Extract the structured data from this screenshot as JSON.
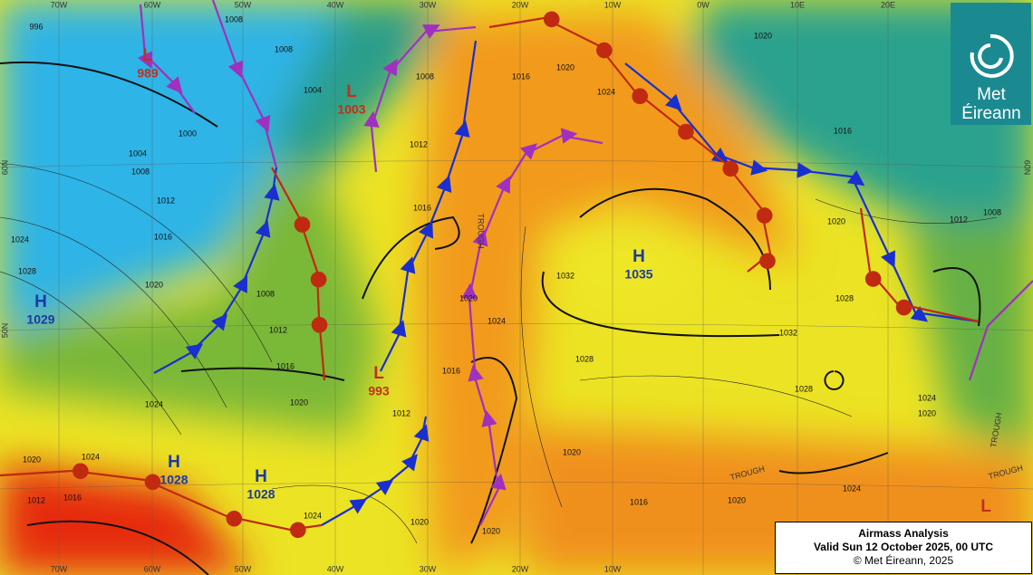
{
  "logo": {
    "line1": "Met",
    "line2": "Éireann"
  },
  "info_box": {
    "title": "Airmass Analysis",
    "valid": "Valid Sun 12 October 2025, 00 UTC",
    "copyright": "© Met Éireann, 2025"
  },
  "pressure_centres": [
    {
      "type": "L",
      "pressure": 989
    },
    {
      "type": "L",
      "pressure": 1003
    },
    {
      "type": "L",
      "pressure": 993
    },
    {
      "type": "H",
      "pressure": 1035
    },
    {
      "type": "H",
      "pressure": 1029
    },
    {
      "type": "H",
      "pressure": 1028
    },
    {
      "type": "H",
      "pressure": 1028
    },
    {
      "type": "L"
    }
  ],
  "longitude_labels_top": [
    "70W",
    "60W",
    "50W",
    "40W",
    "30W",
    "20W",
    "10W",
    "0W",
    "10E",
    "20E"
  ],
  "longitude_labels_bottom": [
    "70W",
    "60W",
    "50W",
    "40W",
    "30W",
    "20W",
    "10W"
  ],
  "latitude_labels": [
    "60N",
    "50N",
    "60N"
  ],
  "trough_labels": [
    "TROUGH",
    "TROUGH",
    "TROUGH",
    "TROUGH"
  ],
  "isobar_labels": [
    996,
    1008,
    1008,
    1004,
    1000,
    1004,
    1008,
    1012,
    1016,
    1024,
    1028,
    1020,
    1008,
    1012,
    1016,
    1020,
    1024,
    1024,
    1020,
    1012,
    1016,
    1024,
    1020,
    1012,
    1016,
    1020,
    1024,
    1028,
    1032,
    1016,
    1012,
    1008,
    1016,
    1020,
    1024,
    1020,
    1020,
    1016,
    1020,
    1028,
    1032,
    1028,
    1024,
    1020,
    1012,
    1008,
    1020,
    1016,
    1024,
    1020
  ]
}
